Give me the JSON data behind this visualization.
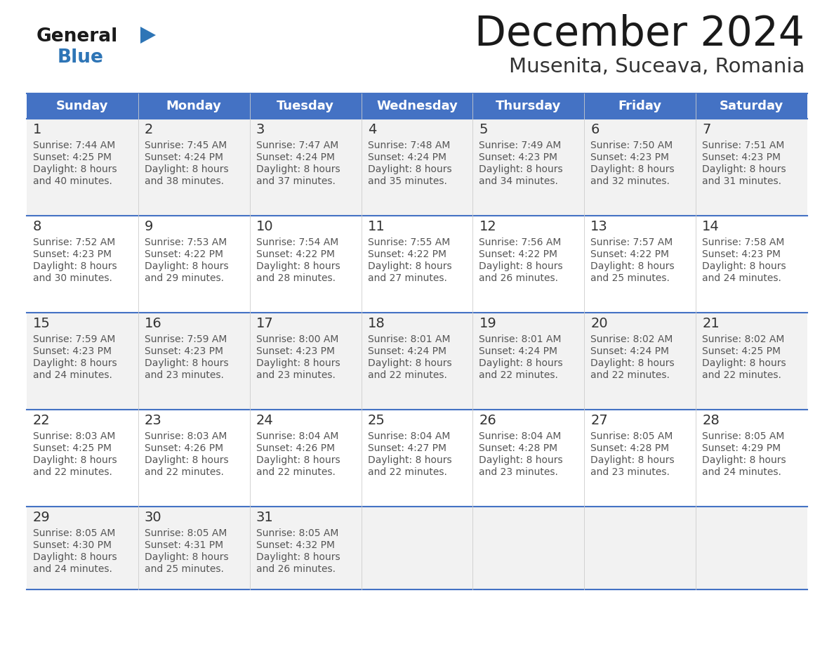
{
  "title": "December 2024",
  "subtitle": "Musenita, Suceava, Romania",
  "header_bg": "#4472C4",
  "header_text_color": "#FFFFFF",
  "days_of_week": [
    "Sunday",
    "Monday",
    "Tuesday",
    "Wednesday",
    "Thursday",
    "Friday",
    "Saturday"
  ],
  "row_bg_odd": "#F2F2F2",
  "row_bg_even": "#FFFFFF",
  "cell_text_color": "#555555",
  "day_num_color": "#333333",
  "title_color": "#1a1a1a",
  "subtitle_color": "#333333",
  "line_color": "#4472C4",
  "logo_general_color": "#1a1a1a",
  "logo_blue_color": "#2E75B6",
  "calendar_data": [
    [
      {
        "day": 1,
        "sunrise": "7:44 AM",
        "sunset": "4:25 PM",
        "daylight": "8 hours and 40 minutes."
      },
      {
        "day": 2,
        "sunrise": "7:45 AM",
        "sunset": "4:24 PM",
        "daylight": "8 hours and 38 minutes."
      },
      {
        "day": 3,
        "sunrise": "7:47 AM",
        "sunset": "4:24 PM",
        "daylight": "8 hours and 37 minutes."
      },
      {
        "day": 4,
        "sunrise": "7:48 AM",
        "sunset": "4:24 PM",
        "daylight": "8 hours and 35 minutes."
      },
      {
        "day": 5,
        "sunrise": "7:49 AM",
        "sunset": "4:23 PM",
        "daylight": "8 hours and 34 minutes."
      },
      {
        "day": 6,
        "sunrise": "7:50 AM",
        "sunset": "4:23 PM",
        "daylight": "8 hours and 32 minutes."
      },
      {
        "day": 7,
        "sunrise": "7:51 AM",
        "sunset": "4:23 PM",
        "daylight": "8 hours and 31 minutes."
      }
    ],
    [
      {
        "day": 8,
        "sunrise": "7:52 AM",
        "sunset": "4:23 PM",
        "daylight": "8 hours and 30 minutes."
      },
      {
        "day": 9,
        "sunrise": "7:53 AM",
        "sunset": "4:22 PM",
        "daylight": "8 hours and 29 minutes."
      },
      {
        "day": 10,
        "sunrise": "7:54 AM",
        "sunset": "4:22 PM",
        "daylight": "8 hours and 28 minutes."
      },
      {
        "day": 11,
        "sunrise": "7:55 AM",
        "sunset": "4:22 PM",
        "daylight": "8 hours and 27 minutes."
      },
      {
        "day": 12,
        "sunrise": "7:56 AM",
        "sunset": "4:22 PM",
        "daylight": "8 hours and 26 minutes."
      },
      {
        "day": 13,
        "sunrise": "7:57 AM",
        "sunset": "4:22 PM",
        "daylight": "8 hours and 25 minutes."
      },
      {
        "day": 14,
        "sunrise": "7:58 AM",
        "sunset": "4:23 PM",
        "daylight": "8 hours and 24 minutes."
      }
    ],
    [
      {
        "day": 15,
        "sunrise": "7:59 AM",
        "sunset": "4:23 PM",
        "daylight": "8 hours and 24 minutes."
      },
      {
        "day": 16,
        "sunrise": "7:59 AM",
        "sunset": "4:23 PM",
        "daylight": "8 hours and 23 minutes."
      },
      {
        "day": 17,
        "sunrise": "8:00 AM",
        "sunset": "4:23 PM",
        "daylight": "8 hours and 23 minutes."
      },
      {
        "day": 18,
        "sunrise": "8:01 AM",
        "sunset": "4:24 PM",
        "daylight": "8 hours and 22 minutes."
      },
      {
        "day": 19,
        "sunrise": "8:01 AM",
        "sunset": "4:24 PM",
        "daylight": "8 hours and 22 minutes."
      },
      {
        "day": 20,
        "sunrise": "8:02 AM",
        "sunset": "4:24 PM",
        "daylight": "8 hours and 22 minutes."
      },
      {
        "day": 21,
        "sunrise": "8:02 AM",
        "sunset": "4:25 PM",
        "daylight": "8 hours and 22 minutes."
      }
    ],
    [
      {
        "day": 22,
        "sunrise": "8:03 AM",
        "sunset": "4:25 PM",
        "daylight": "8 hours and 22 minutes."
      },
      {
        "day": 23,
        "sunrise": "8:03 AM",
        "sunset": "4:26 PM",
        "daylight": "8 hours and 22 minutes."
      },
      {
        "day": 24,
        "sunrise": "8:04 AM",
        "sunset": "4:26 PM",
        "daylight": "8 hours and 22 minutes."
      },
      {
        "day": 25,
        "sunrise": "8:04 AM",
        "sunset": "4:27 PM",
        "daylight": "8 hours and 22 minutes."
      },
      {
        "day": 26,
        "sunrise": "8:04 AM",
        "sunset": "4:28 PM",
        "daylight": "8 hours and 23 minutes."
      },
      {
        "day": 27,
        "sunrise": "8:05 AM",
        "sunset": "4:28 PM",
        "daylight": "8 hours and 23 minutes."
      },
      {
        "day": 28,
        "sunrise": "8:05 AM",
        "sunset": "4:29 PM",
        "daylight": "8 hours and 24 minutes."
      }
    ],
    [
      {
        "day": 29,
        "sunrise": "8:05 AM",
        "sunset": "4:30 PM",
        "daylight": "8 hours and 24 minutes."
      },
      {
        "day": 30,
        "sunrise": "8:05 AM",
        "sunset": "4:31 PM",
        "daylight": "8 hours and 25 minutes."
      },
      {
        "day": 31,
        "sunrise": "8:05 AM",
        "sunset": "4:32 PM",
        "daylight": "8 hours and 26 minutes."
      },
      null,
      null,
      null,
      null
    ]
  ],
  "fig_width": 11.88,
  "fig_height": 9.18,
  "dpi": 100
}
